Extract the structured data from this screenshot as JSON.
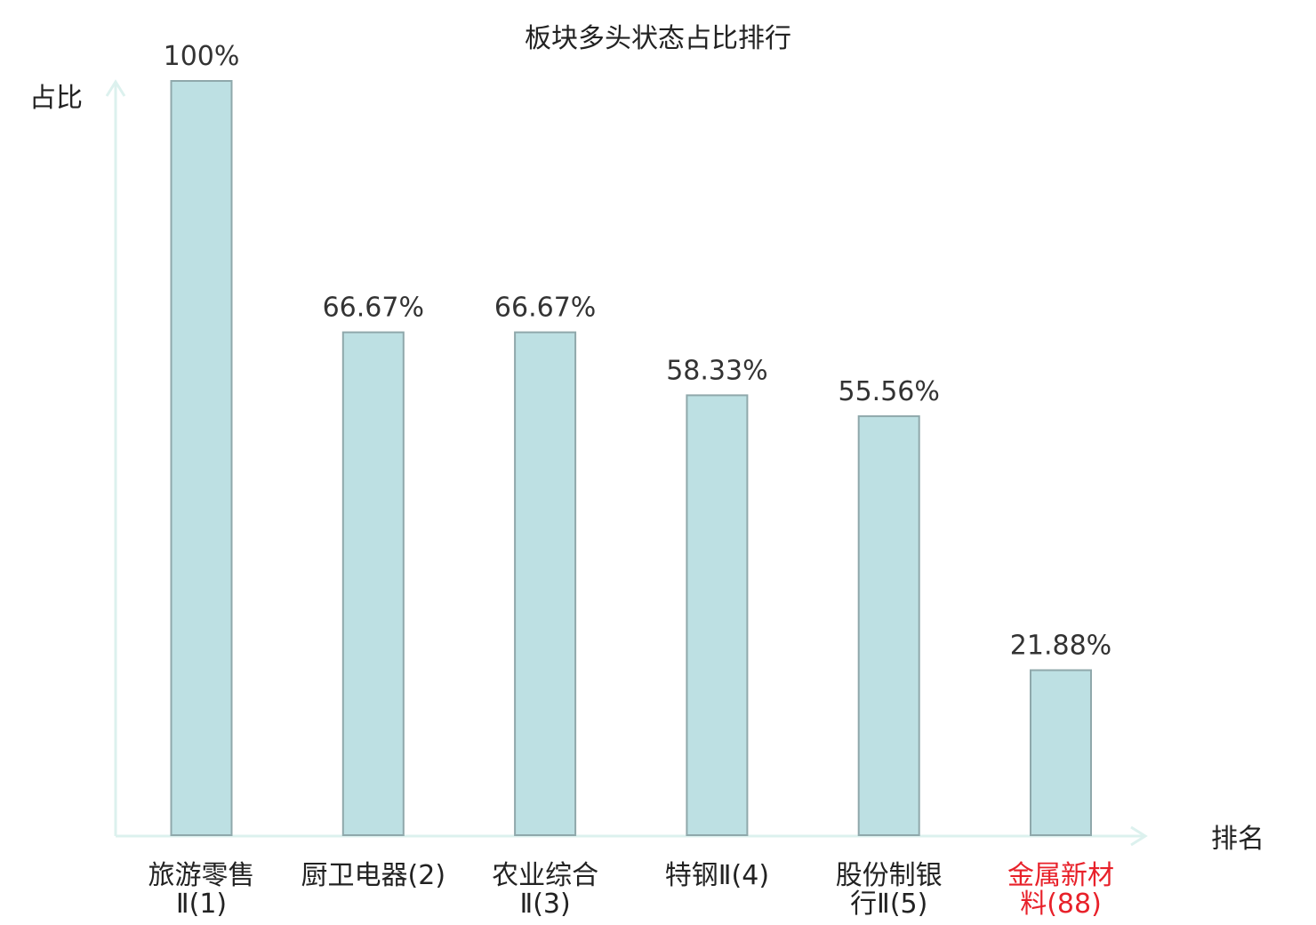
{
  "chart_data": {
    "type": "bar",
    "title": "板块多头状态占比排行",
    "ylabel": "占比",
    "xlabel": "排名",
    "ylim": [
      0,
      100
    ],
    "grid": false,
    "categories": [
      {
        "lines": [
          "旅游零售",
          "Ⅱ(1)"
        ],
        "highlight": false
      },
      {
        "lines": [
          "厨卫电器(2)"
        ],
        "highlight": false
      },
      {
        "lines": [
          "农业综合",
          "Ⅱ(3)"
        ],
        "highlight": false
      },
      {
        "lines": [
          "特钢Ⅱ(4)"
        ],
        "highlight": false
      },
      {
        "lines": [
          "股份制银",
          "行Ⅱ(5)"
        ],
        "highlight": false
      },
      {
        "lines": [
          "金属新材",
          "料(88)"
        ],
        "highlight": true
      }
    ],
    "values": [
      100,
      66.67,
      66.67,
      58.33,
      55.56,
      21.88
    ],
    "value_labels": [
      "100%",
      "66.67%",
      "66.67%",
      "58.33%",
      "55.56%",
      "21.88%"
    ],
    "colors": {
      "bar_fill": "#bde0e3",
      "bar_stroke": "#8fa8ab",
      "axis": "#dcf1ee",
      "label": "#222222",
      "highlight": "#e8212a"
    }
  }
}
